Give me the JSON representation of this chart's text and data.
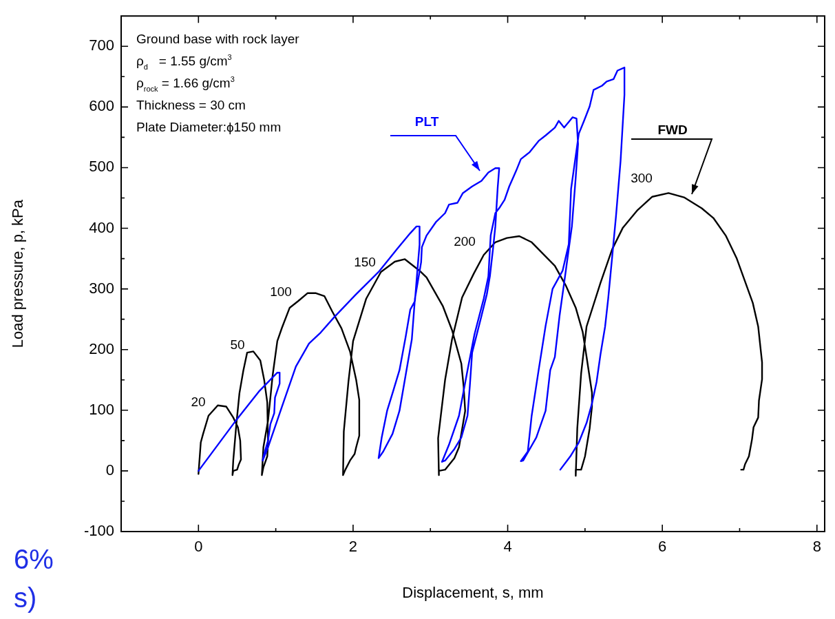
{
  "chart_data": {
    "type": "line",
    "xlabel": "Displacement, s, mm",
    "ylabel": "Load pressure, p, kPa",
    "xlim": [
      -1,
      8.1
    ],
    "ylim": [
      -100,
      750
    ],
    "xticks": [
      0,
      {
        "value": 1,
        "label": null
      },
      2,
      {
        "value": 3,
        "label": null
      },
      4,
      {
        "value": 5,
        "label": null
      },
      6,
      {
        "value": 7,
        "label": null
      },
      8
    ],
    "yticks": [
      -100,
      {
        "value": -50,
        "label": null
      },
      0,
      {
        "value": 50,
        "label": null
      },
      100,
      {
        "value": 150,
        "label": null
      },
      200,
      {
        "value": 250,
        "label": null
      },
      300,
      {
        "value": 350,
        "label": null
      },
      400,
      {
        "value": 450,
        "label": null
      },
      500,
      {
        "value": 550,
        "label": null
      },
      600,
      {
        "value": 650,
        "label": null
      },
      700
    ],
    "grid": false,
    "legend": false,
    "marker": "none",
    "line_style": "solid",
    "series": [
      {
        "name": "PLT",
        "color": "#0000ff",
        "x": [
          0,
          0.49,
          0.79,
          1.02,
          1.05,
          1.05,
          0.99,
          0.98,
          0.93,
          0.9,
          0.85,
          0.83,
          0.9,
          1.08,
          1.26,
          1.43,
          1.58,
          1.76,
          2.03,
          2.33,
          2.57,
          2.74,
          2.82,
          2.86,
          2.86,
          2.83,
          2.8,
          2.74,
          2.68,
          2.6,
          2.51,
          2.44,
          2.37,
          2.33,
          2.39,
          2.51,
          2.6,
          2.68,
          2.76,
          2.8,
          2.88,
          2.89,
          2.95,
          3.07,
          3.19,
          3.24,
          3.35,
          3.42,
          3.54,
          3.66,
          3.75,
          3.84,
          3.89,
          3.87,
          3.84,
          3.81,
          3.77,
          3.73,
          3.66,
          3.6,
          3.54,
          3.51,
          3.48,
          3.4,
          3.31,
          3.19,
          3.15,
          3.24,
          3.37,
          3.48,
          3.57,
          3.69,
          3.75,
          3.78,
          3.84,
          3.9,
          3.96,
          4.02,
          4.11,
          4.17,
          4.28,
          4.4,
          4.49,
          4.61,
          4.66,
          4.73,
          4.84,
          4.89,
          4.91,
          4.88,
          4.83,
          4.79,
          4.73,
          4.67,
          4.61,
          4.55,
          4.49,
          4.37,
          4.2,
          4.17,
          4.26,
          4.31,
          4.4,
          4.49,
          4.58,
          4.71,
          4.79,
          4.82,
          4.92,
          4.99,
          5.06,
          5.11,
          5.22,
          5.28,
          5.37,
          5.42,
          5.51,
          5.51,
          5.46,
          5.4,
          5.35,
          5.3,
          5.26,
          5.2,
          5.15,
          5.09,
          5.02,
          4.92,
          4.81,
          4.68
        ],
        "values": [
          0,
          84,
          132,
          162,
          162,
          144,
          121,
          95,
          77,
          50,
          28,
          17,
          39,
          106,
          172,
          210,
          228,
          254,
          290,
          328,
          366,
          392,
          403,
          403,
          373,
          328,
          280,
          266,
          221,
          166,
          128,
          99,
          55,
          21,
          32,
          61,
          99,
          158,
          217,
          284,
          344,
          369,
          388,
          410,
          425,
          439,
          442,
          458,
          469,
          478,
          492,
          499,
          499,
          466,
          403,
          366,
          321,
          291,
          255,
          225,
          195,
          140,
          91,
          55,
          36,
          17,
          15,
          43,
          91,
          166,
          225,
          284,
          321,
          388,
          425,
          435,
          447,
          469,
          495,
          514,
          525,
          544,
          553,
          566,
          577,
          566,
          583,
          581,
          539,
          484,
          403,
          366,
          310,
          255,
          188,
          166,
          99,
          55,
          17,
          16,
          32,
          91,
          166,
          239,
          300,
          330,
          374,
          465,
          556,
          578,
          601,
          628,
          635,
          642,
          646,
          660,
          665,
          620,
          511,
          419,
          351,
          284,
          238,
          192,
          147,
          111,
          79,
          47,
          24,
          2
        ]
      },
      {
        "name": "FWD",
        "color": "#000000",
        "x": [
          0,
          0.03,
          0.06,
          0.13,
          0.25,
          0.36,
          0.45,
          0.51,
          0.54,
          0.55,
          0.52,
          0.5,
          0.45,
          0.44,
          0.45,
          0.49,
          0.53,
          0.58,
          0.63,
          0.71,
          0.8,
          0.85,
          0.89,
          0.9,
          0.89,
          0.86,
          0.84,
          0.82,
          0.84,
          0.9,
          0.96,
          1.02,
          1.08,
          1.18,
          1.29,
          1.41,
          1.52,
          1.63,
          1.73,
          1.85,
          1.96,
          2.04,
          2.08,
          2.08,
          2.04,
          2.02,
          1.96,
          1.9,
          1.87,
          1.88,
          1.94,
          2.0,
          2.17,
          2.36,
          2.54,
          2.67,
          2.86,
          2.95,
          3.16,
          3.28,
          3.4,
          3.43,
          3.45,
          3.4,
          3.37,
          3.31,
          3.19,
          3.11,
          3.11,
          3.1,
          3.19,
          3.28,
          3.41,
          3.56,
          3.69,
          3.84,
          3.99,
          4.15,
          4.31,
          4.61,
          4.75,
          4.88,
          4.97,
          5.02,
          5.09,
          5.09,
          5.06,
          5.0,
          4.95,
          4.88,
          4.88,
          4.9,
          4.95,
          5.02,
          5.2,
          5.35,
          5.49,
          5.68,
          5.87,
          6.08,
          6.28,
          6.51,
          6.66,
          6.82,
          6.96,
          7.17,
          7.24,
          7.29,
          7.29,
          7.25,
          7.24,
          7.18,
          7.16,
          7.12,
          7.07,
          7.05,
          7.02
        ],
        "values": [
          -5,
          47,
          61,
          91,
          108,
          106,
          88,
          72,
          50,
          19,
          10,
          2,
          0,
          -7,
          17,
          77,
          128,
          165,
          195,
          197,
          182,
          150,
          113,
          47,
          24,
          13,
          6,
          -7,
          39,
          83,
          158,
          214,
          236,
          269,
          280,
          293,
          293,
          288,
          263,
          235,
          197,
          150,
          117,
          58,
          39,
          28,
          17,
          2,
          -7,
          65,
          147,
          214,
          284,
          328,
          345,
          349,
          330,
          319,
          272,
          232,
          177,
          139,
          99,
          61,
          39,
          21,
          2,
          0,
          -7,
          54,
          150,
          217,
          286,
          325,
          356,
          377,
          384,
          387,
          377,
          338,
          306,
          269,
          229,
          188,
          129,
          106,
          70,
          24,
          2,
          2,
          -8,
          70,
          161,
          238,
          310,
          365,
          401,
          430,
          452,
          458,
          451,
          433,
          417,
          388,
          351,
          277,
          238,
          179,
          151,
          116,
          88,
          72,
          52,
          24,
          11,
          2,
          2
        ]
      }
    ],
    "annotations": [
      "Ground base with rock layer",
      "ρ$_{d}$   = 1.55 g/cm$^{3}$",
      "ρ$_{rock}$ = 1.66 g/cm$^{3}$",
      "Thickness = 30 cm",
      "Plate Diameter:ϕ150 mm",
      "20",
      "50",
      "100",
      "150",
      "200",
      "300",
      "6%",
      "s)"
    ]
  }
}
